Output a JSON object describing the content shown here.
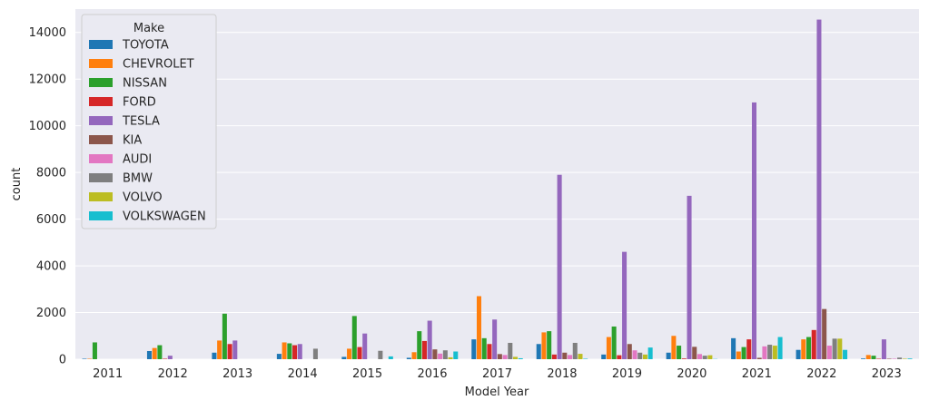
{
  "chart_data": {
    "type": "bar",
    "xlabel": "Model Year",
    "ylabel": "count",
    "ylim": [
      0,
      15000
    ],
    "yticks": [
      0,
      2000,
      4000,
      6000,
      8000,
      10000,
      12000,
      14000
    ],
    "grid": true,
    "legend": {
      "title": "Make",
      "placement": "top-left"
    },
    "categories": [
      "2011",
      "2012",
      "2013",
      "2014",
      "2015",
      "2016",
      "2017",
      "2018",
      "2019",
      "2020",
      "2021",
      "2022",
      "2023"
    ],
    "series": [
      {
        "name": "TOYOTA",
        "color": "#1f77b4",
        "values": [
          20,
          350,
          280,
          230,
          100,
          60,
          850,
          650,
          200,
          280,
          900,
          400,
          30
        ]
      },
      {
        "name": "CHEVROLET",
        "color": "#ff7f0e",
        "values": [
          20,
          480,
          800,
          720,
          450,
          300,
          2700,
          1150,
          950,
          1000,
          330,
          850,
          180
        ]
      },
      {
        "name": "NISSAN",
        "color": "#2ca02c",
        "values": [
          720,
          600,
          1950,
          680,
          1850,
          1200,
          900,
          1200,
          1400,
          580,
          520,
          950,
          150
        ]
      },
      {
        "name": "FORD",
        "color": "#d62728",
        "values": [
          0,
          20,
          650,
          600,
          520,
          780,
          650,
          200,
          170,
          30,
          850,
          1250,
          20
        ]
      },
      {
        "name": "TESLA",
        "color": "#9467bd",
        "values": [
          0,
          150,
          800,
          650,
          1100,
          1650,
          1700,
          7900,
          4600,
          7000,
          11000,
          14550,
          850
        ]
      },
      {
        "name": "KIA",
        "color": "#8c564b",
        "values": [
          0,
          0,
          0,
          0,
          0,
          420,
          220,
          280,
          650,
          530,
          60,
          2150,
          20
        ]
      },
      {
        "name": "AUDI",
        "color": "#e377c2",
        "values": [
          0,
          0,
          0,
          0,
          0,
          240,
          180,
          180,
          380,
          220,
          550,
          580,
          20
        ]
      },
      {
        "name": "BMW",
        "color": "#7f7f7f",
        "values": [
          0,
          0,
          0,
          450,
          360,
          380,
          700,
          700,
          280,
          150,
          620,
          880,
          70
        ]
      },
      {
        "name": "VOLVO",
        "color": "#bcbd22",
        "values": [
          0,
          0,
          0,
          0,
          0,
          80,
          100,
          230,
          200,
          170,
          580,
          880,
          20
        ]
      },
      {
        "name": "VOLKSWAGEN",
        "color": "#17becf",
        "values": [
          0,
          0,
          0,
          0,
          120,
          330,
          40,
          20,
          500,
          10,
          950,
          400,
          30
        ]
      }
    ]
  }
}
